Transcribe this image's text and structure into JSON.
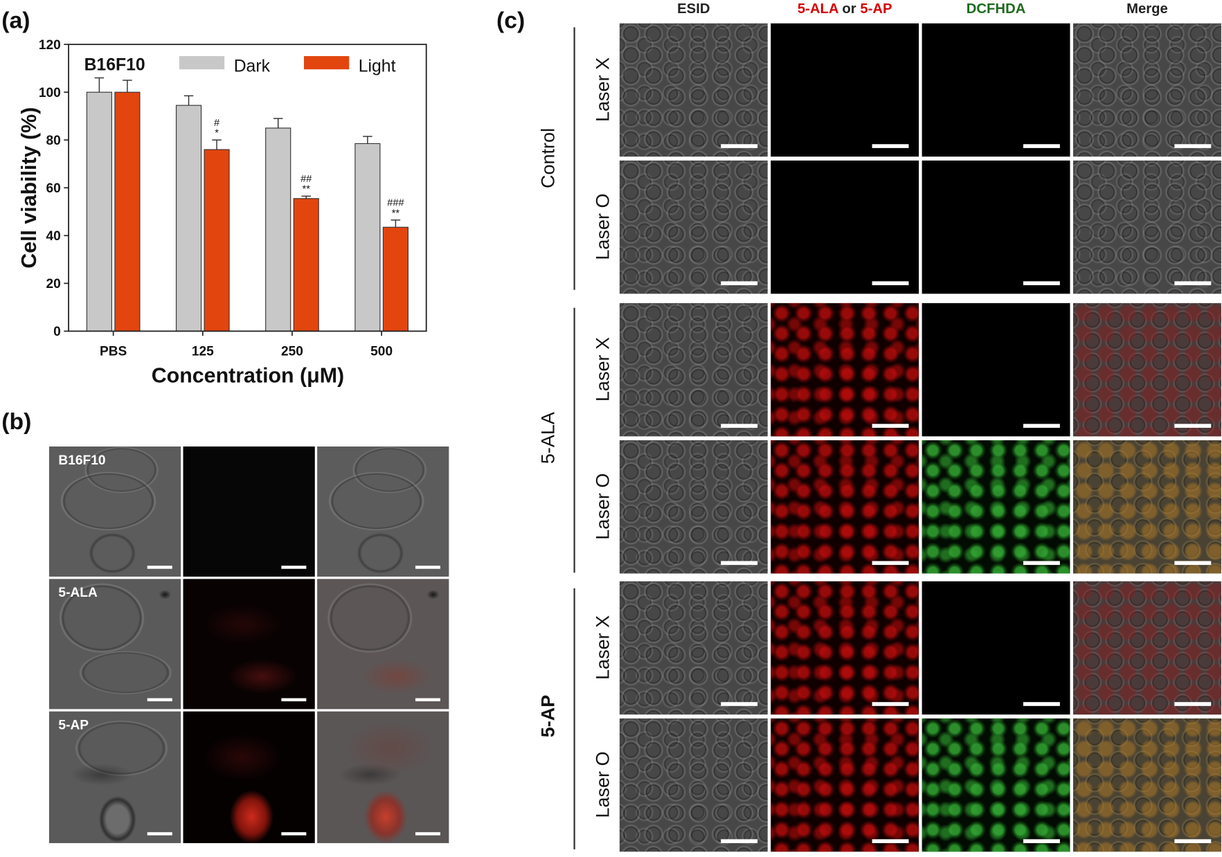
{
  "panel_labels": {
    "a": "(a)",
    "b": "(b)",
    "c": "(c)"
  },
  "chart_data": {
    "type": "bar",
    "label": "B16F10",
    "categories": [
      "PBS",
      "125",
      "250",
      "500"
    ],
    "series": [
      {
        "name": "Dark",
        "values": [
          100,
          94.5,
          85,
          78.5
        ],
        "errors": [
          6,
          4,
          4,
          3
        ],
        "color": "#c8c8c8"
      },
      {
        "name": "Light",
        "values": [
          100,
          76,
          55.5,
          43.5
        ],
        "errors": [
          5,
          4,
          1,
          3
        ],
        "color": "#e3450f"
      }
    ],
    "significance": {
      "Light": [
        [],
        [
          "#",
          "*"
        ],
        [
          "##",
          "**"
        ],
        [
          "###",
          "**"
        ]
      ]
    },
    "xlabel": "Concentration (μM)",
    "ylabel": "Cell viability (%)",
    "ylim": [
      0,
      120
    ],
    "yticks": [
      0,
      20,
      40,
      60,
      80,
      100,
      120
    ],
    "legend": "top",
    "grid": false
  },
  "panel_b": {
    "rows": [
      "B16F10",
      "5-ALA",
      "5-AP"
    ]
  },
  "panel_c": {
    "headers": {
      "esid": "ESID",
      "probe_a": "5-ALA",
      "probe_or": "or",
      "probe_b": "5-AP",
      "dcfhda": "DCFHDA",
      "merge": "Merge"
    },
    "groups": [
      {
        "label": "Control",
        "rows": [
          "Laser X",
          "Laser O"
        ]
      },
      {
        "label": "5-ALA",
        "rows": [
          "Laser X",
          "Laser O"
        ]
      },
      {
        "label": "5-AP",
        "rows": [
          "Laser X",
          "Laser O"
        ]
      }
    ]
  },
  "colors": {
    "dark_bar": "#c8c8c8",
    "light_bar": "#e3450f",
    "probe_red": "#d50000",
    "dcfhda_green": "#1e6b1e"
  }
}
